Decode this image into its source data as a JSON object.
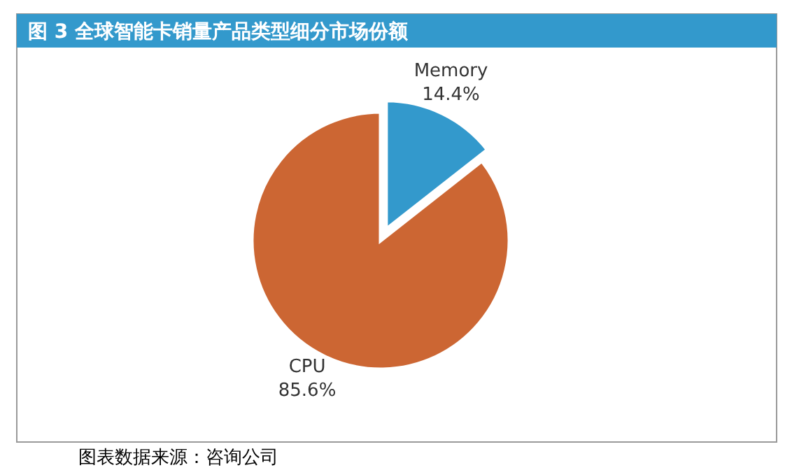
{
  "chart_data": {
    "type": "pie",
    "title": "图 3 全球智能卡销量产品类型细分市场份额",
    "categories": [
      "Memory",
      "CPU"
    ],
    "values": [
      14.4,
      85.6
    ],
    "value_labels": [
      "14.4%",
      "85.6%"
    ],
    "colors": [
      "#3399cc",
      "#cc6633"
    ],
    "legend": false,
    "annotations": [
      "图表数据来源：咨询公司"
    ]
  }
}
